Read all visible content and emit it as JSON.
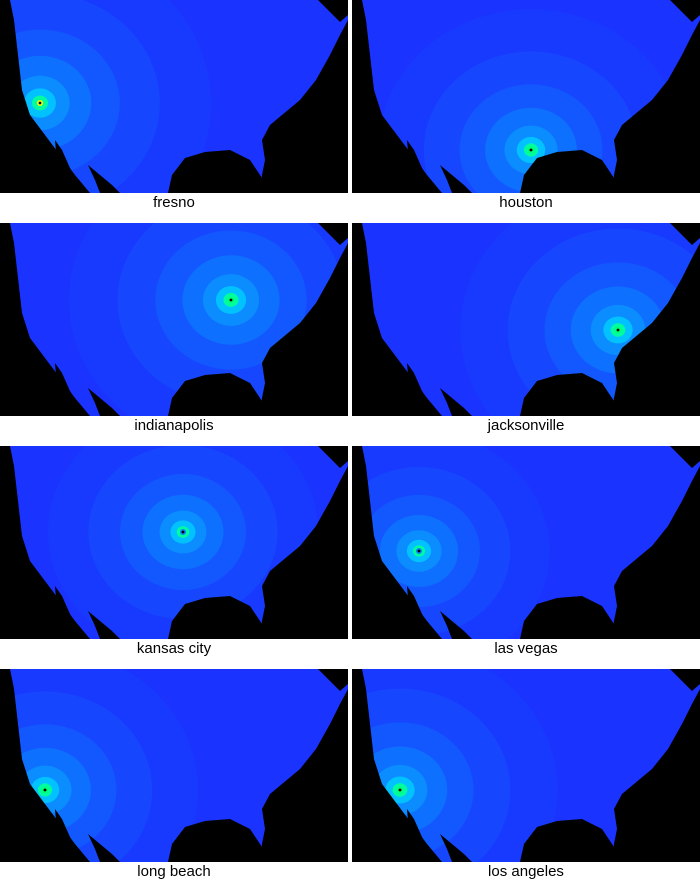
{
  "colors": {
    "background": "#1a33ff",
    "land_mask": "#000000",
    "low": "#1a33ff",
    "mid": "#0a80ff",
    "high": "#00ff66",
    "peak": "#ffff00"
  },
  "panels": [
    {
      "city": "fresno",
      "intensity": 0.9
    },
    {
      "city": "houston",
      "intensity": 0.7
    },
    {
      "city": "indianapolis",
      "intensity": 0.8
    },
    {
      "city": "jacksonville",
      "intensity": 0.75
    },
    {
      "city": "kansas city",
      "intensity": 0.5
    },
    {
      "city": "las vegas",
      "intensity": 0.45
    },
    {
      "city": "long beach",
      "intensity": 0.7
    },
    {
      "city": "los angeles",
      "intensity": 0.75
    }
  ]
}
